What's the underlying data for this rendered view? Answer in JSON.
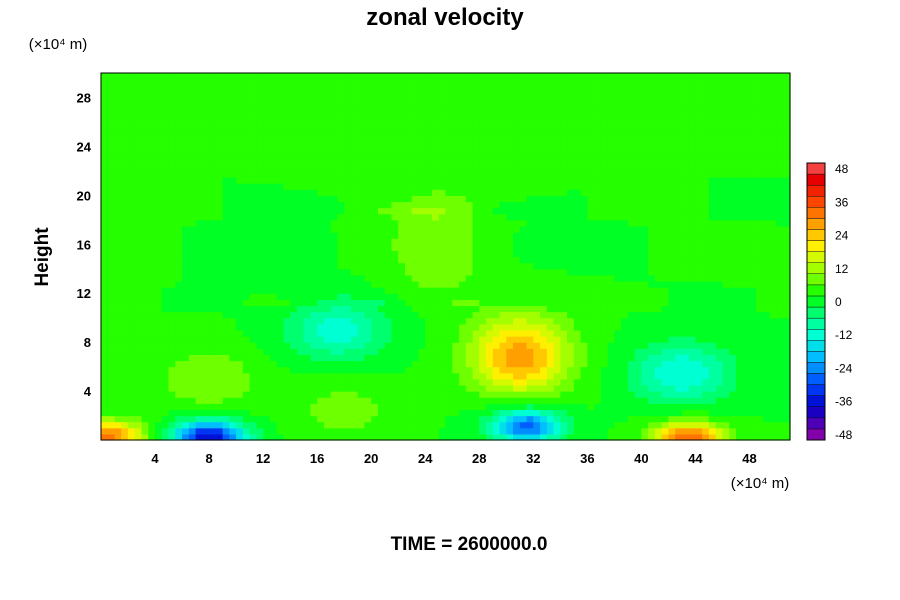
{
  "chart_data": {
    "type": "heatmap",
    "title": "zonal velocity",
    "ylabel": "Height",
    "xlabel": "",
    "x_unit_label": "(×10⁴ m)",
    "y_unit_label": "(×10⁴ m)",
    "footer_text": "TIME = 2600000.0",
    "xlim": [
      0,
      51
    ],
    "ylim": [
      0,
      30
    ],
    "x_ticks": [
      4,
      8,
      12,
      16,
      20,
      24,
      28,
      32,
      36,
      40,
      44,
      48
    ],
    "y_ticks": [
      4,
      8,
      12,
      16,
      20,
      24,
      28
    ],
    "colorbar": {
      "min": -50,
      "max": 50,
      "step": 4,
      "ticks": [
        48,
        36,
        24,
        12,
        0,
        -12,
        -24,
        -36,
        -48
      ]
    },
    "features": [
      {
        "x": 8,
        "y": 0.3,
        "value": -40
      },
      {
        "x": 31.5,
        "y": 1.2,
        "value": -30
      },
      {
        "x": 43.5,
        "y": 0.2,
        "value": 32
      },
      {
        "x": 0.5,
        "y": 0.3,
        "value": 30
      },
      {
        "x": 31,
        "y": 6,
        "value": 20
      },
      {
        "x": 31,
        "y": 8.5,
        "value": 14
      },
      {
        "x": 8,
        "y": 5,
        "value": 8
      },
      {
        "x": 17.5,
        "y": 9,
        "value": -14
      },
      {
        "x": 43,
        "y": 5.5,
        "value": -16
      },
      {
        "x": 18,
        "y": 2.5,
        "value": 6
      },
      {
        "x": 25,
        "y": 18.5,
        "value": 7
      },
      {
        "x": 25,
        "y": 14,
        "value": 6
      }
    ]
  }
}
